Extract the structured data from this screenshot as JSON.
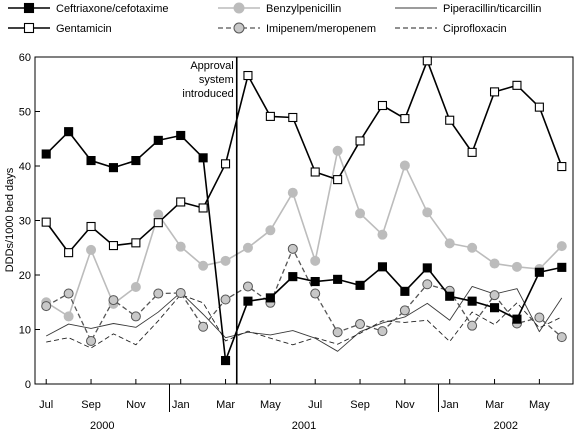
{
  "chart_data": {
    "type": "line",
    "ylabel": "DDDs/1000 bed days",
    "ylim": [
      0,
      60
    ],
    "yticks": [
      0,
      10,
      20,
      30,
      40,
      50,
      60
    ],
    "x_tick_labels": [
      "Jul",
      "Sep",
      "Nov",
      "Jan",
      "Mar",
      "May",
      "Jul",
      "Sep",
      "Nov",
      "Jan",
      "Mar",
      "May"
    ],
    "year_labels": [
      "2000",
      "2001",
      "2002"
    ],
    "annotation": {
      "lines": [
        "Approval",
        "system",
        "introduced"
      ],
      "position": 8.5
    },
    "legend_position": "top",
    "x": [
      "Jul 2000",
      "Aug 2000",
      "Sep 2000",
      "Oct 2000",
      "Nov 2000",
      "Dec 2000",
      "Jan 2001",
      "Feb 2001",
      "Mar 2001",
      "Apr 2001",
      "May 2001",
      "Jun 2001",
      "Jul 2001",
      "Aug 2001",
      "Sep 2001",
      "Oct 2001",
      "Nov 2001",
      "Dec 2001",
      "Jan 2002",
      "Feb 2002",
      "Mar 2002",
      "Apr 2002",
      "May 2002",
      "Jun 2002"
    ],
    "series": [
      {
        "name": "Ceftriaxone/cefotaxime",
        "style": "line-filled-square",
        "color": "#000000",
        "values": [
          42.2,
          46.3,
          41.0,
          39.7,
          41.0,
          44.7,
          45.6,
          41.5,
          4.3,
          15.2,
          15.8,
          19.7,
          18.8,
          19.2,
          18.1,
          21.5,
          17.0,
          21.3,
          16.1,
          15.2,
          14.0,
          11.9,
          20.5,
          21.4
        ]
      },
      {
        "name": "Benzylpenicillin",
        "style": "gray-line-gray-circle",
        "color": "#b7b7b7",
        "values": [
          15.0,
          12.4,
          24.6,
          14.7,
          17.8,
          31.1,
          25.2,
          21.7,
          22.6,
          25.0,
          28.2,
          35.1,
          22.6,
          42.8,
          31.3,
          27.4,
          40.1,
          31.5,
          25.8,
          25.0,
          22.1,
          21.5,
          21.1,
          25.3
        ]
      },
      {
        "name": "Piperacillin/ticarcillin",
        "style": "thin-solid",
        "color": "#333333",
        "values": [
          8.8,
          11.0,
          10.2,
          11.1,
          10.4,
          13.2,
          16.8,
          12.8,
          8.5,
          9.5,
          9.0,
          9.8,
          8.4,
          6.0,
          9.6,
          11.2,
          12.3,
          14.8,
          11.7,
          17.9,
          16.5,
          17.5,
          9.6,
          15.8
        ]
      },
      {
        "name": "Gentamicin",
        "style": "line-open-square",
        "color": "#000000",
        "values": [
          29.7,
          24.1,
          28.9,
          25.4,
          25.9,
          29.6,
          33.4,
          32.3,
          40.4,
          56.6,
          49.1,
          48.9,
          38.9,
          37.5,
          44.6,
          51.1,
          48.7,
          59.3,
          48.4,
          42.5,
          53.6,
          54.8,
          50.8,
          39.9
        ]
      },
      {
        "name": "Imipenem/meropenem",
        "style": "dashed-gray-circle",
        "color": "#555555",
        "values": [
          14.3,
          16.6,
          7.9,
          15.4,
          12.4,
          16.6,
          16.7,
          10.5,
          15.5,
          17.9,
          14.9,
          24.8,
          16.6,
          9.5,
          11.0,
          9.7,
          13.5,
          18.3,
          17.1,
          10.7,
          16.3,
          11.1,
          12.2,
          8.6
        ]
      },
      {
        "name": "Ciprofloxacin",
        "style": "thin-dashed",
        "color": "#222222",
        "values": [
          7.7,
          8.5,
          6.6,
          9.2,
          7.2,
          11.6,
          16.4,
          14.9,
          7.9,
          9.7,
          8.4,
          7.2,
          8.5,
          7.3,
          9.3,
          11.6,
          11.3,
          11.7,
          7.8,
          13.2,
          10.9,
          14.9,
          10.3,
          12.3
        ]
      }
    ]
  }
}
